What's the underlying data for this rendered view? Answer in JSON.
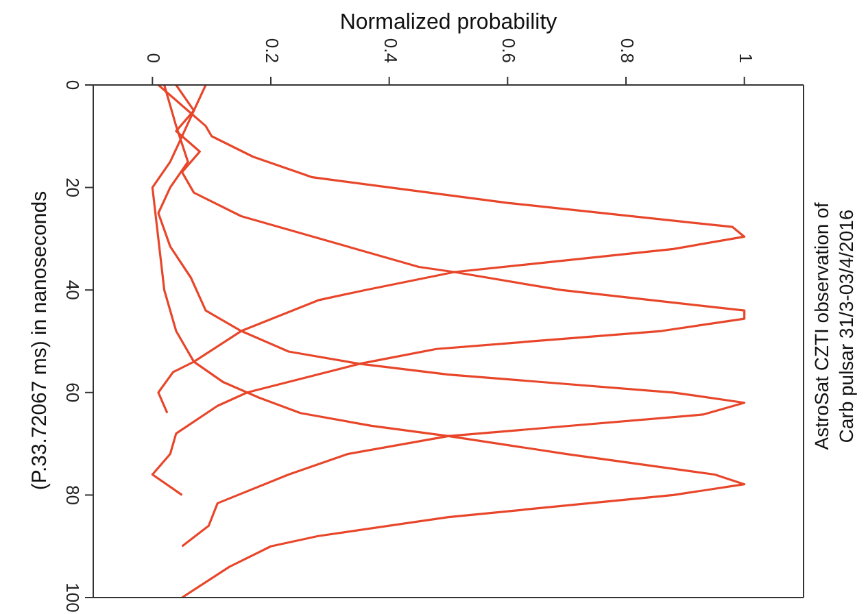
{
  "chart_data": {
    "type": "line",
    "orientation": "horizontal",
    "xlabel": "Normalized probability",
    "ylabel": "(P.33.72067 ms) in nanoseconds",
    "annotations": [
      "AstroSat CZTI observation of Carb pulsar 31/3-03/4/2016"
    ],
    "xlim": [
      -0.1,
      1.1
    ],
    "xticks": [
      0,
      0.2,
      0.4,
      0.6,
      0.8,
      1
    ],
    "ylim": [
      100,
      0
    ],
    "yticks": [
      0,
      20,
      40,
      60,
      80,
      100
    ],
    "legend": false,
    "marker": "none",
    "line_style": "solid",
    "series": [
      {
        "color": "#e8462a",
        "x": [
          0,
          4,
          8,
          10,
          14,
          18,
          23,
          27.7,
          29.6,
          32,
          36.5,
          40,
          42,
          48,
          54,
          56,
          60,
          64
        ],
        "values": [
          0.01,
          0.05,
          0.09,
          0.1,
          0.17,
          0.27,
          0.6,
          0.98,
          1,
          0.88,
          0.51,
          0.36,
          0.28,
          0.15,
          0.07,
          0.035,
          0.01,
          0.025
        ]
      },
      {
        "color": "#e8462a",
        "x": [
          0,
          5,
          9,
          13,
          17,
          21,
          25.6,
          35.5,
          36.5,
          40,
          44,
          45.6,
          48,
          51.5,
          54.4,
          60,
          62.6,
          68,
          72,
          76,
          80
        ],
        "values": [
          0.04,
          0.07,
          0.04,
          0.08,
          0.05,
          0.07,
          0.15,
          0.45,
          0.51,
          0.69,
          1,
          1,
          0.86,
          0.48,
          0.35,
          0.16,
          0.11,
          0.04,
          0.03,
          0,
          0.05
        ]
      },
      {
        "color": "#e8462a",
        "x": [
          0,
          8,
          15,
          20,
          25,
          31.5,
          37.6,
          44,
          48,
          52,
          54.4,
          56.5,
          60,
          62,
          64.3,
          68.5,
          72,
          76,
          81.6,
          86,
          90
        ],
        "values": [
          0.02,
          0.04,
          0.06,
          0.03,
          0.01,
          0.03,
          0.065,
          0.09,
          0.15,
          0.23,
          0.35,
          0.5,
          0.88,
          1,
          0.93,
          0.5,
          0.33,
          0.23,
          0.11,
          0.095,
          0.05
        ]
      },
      {
        "color": "#e8462a",
        "x": [
          0,
          5,
          10,
          15,
          20,
          30,
          40,
          48,
          54,
          58,
          61,
          64,
          66.5,
          68.5,
          72,
          76,
          77.9,
          80,
          84.3,
          88,
          90,
          94,
          100
        ],
        "values": [
          0.09,
          0.07,
          0.05,
          0.03,
          0,
          0.01,
          0.02,
          0.04,
          0.07,
          0.12,
          0.18,
          0.25,
          0.37,
          0.5,
          0.7,
          0.95,
          1,
          0.88,
          0.5,
          0.28,
          0.2,
          0.13,
          0.05
        ]
      }
    ]
  }
}
